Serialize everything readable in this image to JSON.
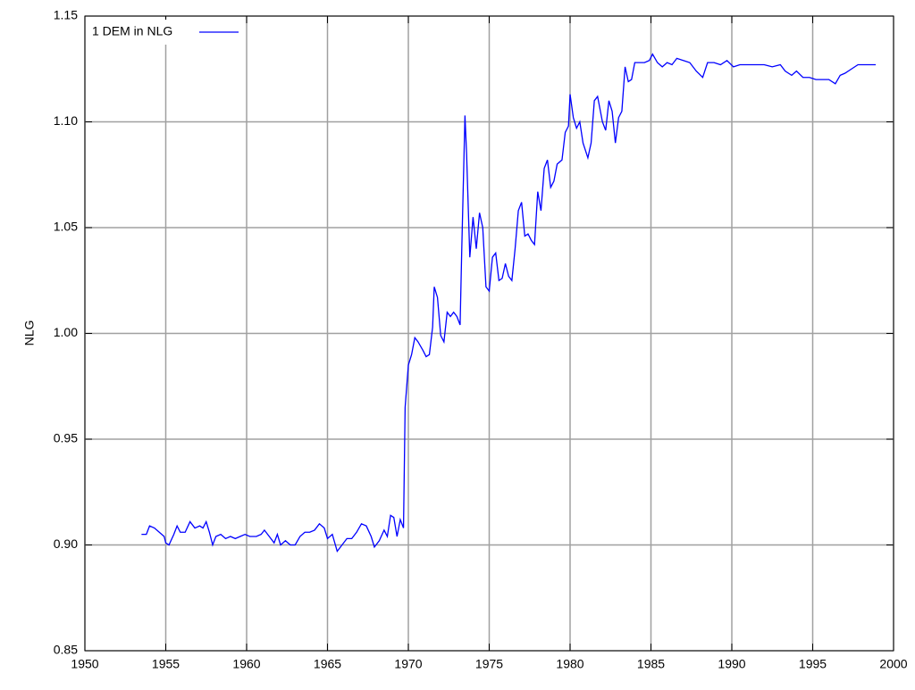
{
  "chart_data": {
    "type": "line",
    "y_label": "NLG",
    "x": [
      1953.5,
      1953.8,
      1954.0,
      1954.3,
      1954.6,
      1954.9,
      1955.0,
      1955.2,
      1955.5,
      1955.7,
      1955.9,
      1956.2,
      1956.5,
      1956.8,
      1957.1,
      1957.3,
      1957.5,
      1957.7,
      1957.9,
      1958.1,
      1958.4,
      1958.7,
      1959.0,
      1959.3,
      1959.6,
      1959.9,
      1960.2,
      1960.6,
      1960.9,
      1961.1,
      1961.4,
      1961.7,
      1961.9,
      1962.1,
      1962.4,
      1962.7,
      1963.0,
      1963.3,
      1963.6,
      1963.9,
      1964.2,
      1964.5,
      1964.8,
      1965.0,
      1965.3,
      1965.6,
      1965.9,
      1966.2,
      1966.5,
      1966.8,
      1967.1,
      1967.4,
      1967.7,
      1967.9,
      1968.2,
      1968.5,
      1968.7,
      1968.9,
      1969.1,
      1969.3,
      1969.5,
      1969.7,
      1969.8,
      1970.0,
      1970.2,
      1970.4,
      1970.6,
      1970.9,
      1971.1,
      1971.3,
      1971.5,
      1971.6,
      1971.8,
      1972.0,
      1972.2,
      1972.4,
      1972.6,
      1972.8,
      1973.0,
      1973.2,
      1973.3,
      1973.5,
      1973.6,
      1973.8,
      1974.0,
      1974.2,
      1974.4,
      1974.6,
      1974.8,
      1975.0,
      1975.2,
      1975.4,
      1975.6,
      1975.8,
      1976.0,
      1976.2,
      1976.4,
      1976.6,
      1976.8,
      1977.0,
      1977.2,
      1977.4,
      1977.6,
      1977.8,
      1978.0,
      1978.2,
      1978.4,
      1978.6,
      1978.8,
      1979.0,
      1979.2,
      1979.5,
      1979.7,
      1979.9,
      1980.0,
      1980.2,
      1980.4,
      1980.6,
      1980.8,
      1981.1,
      1981.3,
      1981.5,
      1981.7,
      1982.0,
      1982.2,
      1982.4,
      1982.6,
      1982.8,
      1983.0,
      1983.2,
      1983.4,
      1983.6,
      1983.8,
      1984.0,
      1984.3,
      1984.6,
      1984.9,
      1985.1,
      1985.4,
      1985.7,
      1986.0,
      1986.3,
      1986.6,
      1987.0,
      1987.4,
      1987.8,
      1988.2,
      1988.5,
      1988.9,
      1989.3,
      1989.7,
      1990.1,
      1990.5,
      1991.0,
      1991.5,
      1992.0,
      1992.5,
      1993.0,
      1993.3,
      1993.7,
      1994.0,
      1994.4,
      1994.8,
      1995.2,
      1995.6,
      1996.0,
      1996.4,
      1996.7,
      1997.0,
      1997.4,
      1997.8,
      1998.2,
      1998.6,
      1998.9
    ],
    "series": [
      {
        "name": "1 DEM in NLG",
        "color": "#0000ff",
        "values": [
          0.905,
          0.905,
          0.909,
          0.908,
          0.906,
          0.904,
          0.901,
          0.9,
          0.905,
          0.909,
          0.906,
          0.906,
          0.911,
          0.908,
          0.909,
          0.908,
          0.911,
          0.906,
          0.9,
          0.904,
          0.905,
          0.903,
          0.904,
          0.903,
          0.904,
          0.905,
          0.904,
          0.904,
          0.905,
          0.907,
          0.904,
          0.901,
          0.905,
          0.9,
          0.902,
          0.9,
          0.9,
          0.904,
          0.906,
          0.906,
          0.907,
          0.91,
          0.908,
          0.903,
          0.905,
          0.897,
          0.9,
          0.903,
          0.903,
          0.906,
          0.91,
          0.909,
          0.904,
          0.899,
          0.902,
          0.907,
          0.904,
          0.914,
          0.913,
          0.904,
          0.912,
          0.908,
          0.965,
          0.985,
          0.99,
          0.998,
          0.996,
          0.992,
          0.989,
          0.99,
          1.003,
          1.022,
          1.017,
          0.999,
          0.996,
          1.01,
          1.008,
          1.01,
          1.008,
          1.004,
          1.039,
          1.103,
          1.085,
          1.036,
          1.055,
          1.04,
          1.057,
          1.05,
          1.022,
          1.02,
          1.036,
          1.038,
          1.025,
          1.026,
          1.033,
          1.027,
          1.025,
          1.04,
          1.058,
          1.062,
          1.046,
          1.047,
          1.044,
          1.042,
          1.067,
          1.058,
          1.078,
          1.082,
          1.069,
          1.072,
          1.08,
          1.082,
          1.095,
          1.098,
          1.113,
          1.102,
          1.097,
          1.1,
          1.09,
          1.083,
          1.09,
          1.11,
          1.112,
          1.1,
          1.096,
          1.11,
          1.105,
          1.09,
          1.102,
          1.105,
          1.126,
          1.119,
          1.12,
          1.128,
          1.128,
          1.128,
          1.129,
          1.132,
          1.128,
          1.126,
          1.128,
          1.127,
          1.13,
          1.129,
          1.128,
          1.124,
          1.121,
          1.128,
          1.128,
          1.127,
          1.129,
          1.126,
          1.127,
          1.127,
          1.127,
          1.127,
          1.126,
          1.127,
          1.124,
          1.122,
          1.124,
          1.121,
          1.121,
          1.12,
          1.12,
          1.12,
          1.118,
          1.122,
          1.123,
          1.125,
          1.127,
          1.127,
          1.127,
          1.127
        ]
      }
    ],
    "xlim": [
      1950,
      2000
    ],
    "xticks": [
      1950,
      1955,
      1960,
      1965,
      1970,
      1975,
      1980,
      1985,
      1990,
      1995,
      2000
    ],
    "ylim": [
      0.85,
      1.15
    ],
    "yticks": [
      0.85,
      {
        "value": 0.9,
        "label": "0.90"
      },
      0.95,
      {
        "value": 1.0,
        "label": "1.00"
      },
      1.05,
      {
        "value": 1.1,
        "label": "1.10"
      },
      1.15
    ],
    "grid": true,
    "legend": "top-left"
  }
}
